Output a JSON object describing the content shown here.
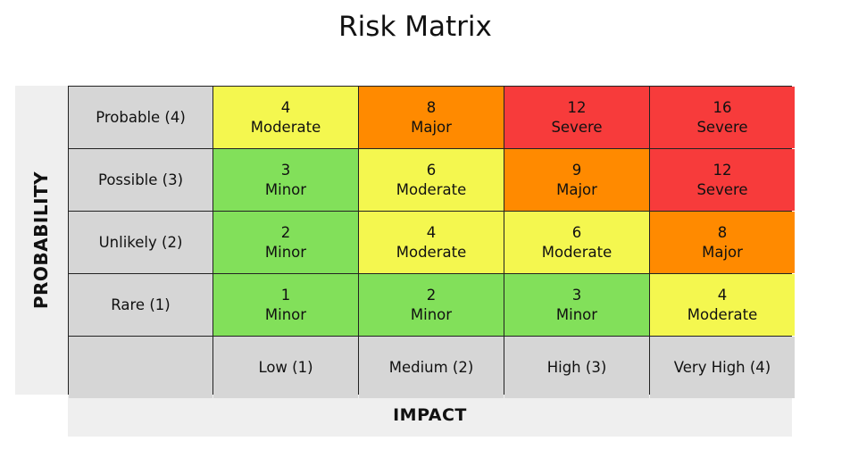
{
  "title": "Risk Matrix",
  "axes": {
    "probability_label": "PROBABILITY",
    "impact_label": "IMPACT"
  },
  "colors": {
    "Minor": "#82e05a",
    "Moderate": "#f4f74f",
    "Major": "#ff8a00",
    "Severe": "#f73b3b",
    "header": "#d6d6d6",
    "axis_band": "#efefef"
  },
  "rows": [
    {
      "label": "Probable (4)",
      "cells": [
        {
          "score": "4",
          "level": "Moderate"
        },
        {
          "score": "8",
          "level": "Major"
        },
        {
          "score": "12",
          "level": "Severe"
        },
        {
          "score": "16",
          "level": "Severe"
        }
      ]
    },
    {
      "label": "Possible (3)",
      "cells": [
        {
          "score": "3",
          "level": "Minor"
        },
        {
          "score": "6",
          "level": "Moderate"
        },
        {
          "score": "9",
          "level": "Major"
        },
        {
          "score": "12",
          "level": "Severe"
        }
      ]
    },
    {
      "label": "Unlikely (2)",
      "cells": [
        {
          "score": "2",
          "level": "Minor"
        },
        {
          "score": "4",
          "level": "Moderate"
        },
        {
          "score": "6",
          "level": "Moderate"
        },
        {
          "score": "8",
          "level": "Major"
        }
      ]
    },
    {
      "label": "Rare (1)",
      "cells": [
        {
          "score": "1",
          "level": "Minor"
        },
        {
          "score": "2",
          "level": "Minor"
        },
        {
          "score": "3",
          "level": "Minor"
        },
        {
          "score": "4",
          "level": "Moderate"
        }
      ]
    }
  ],
  "columns": [
    "Low (1)",
    "Medium (2)",
    "High (3)",
    "Very High (4)"
  ]
}
